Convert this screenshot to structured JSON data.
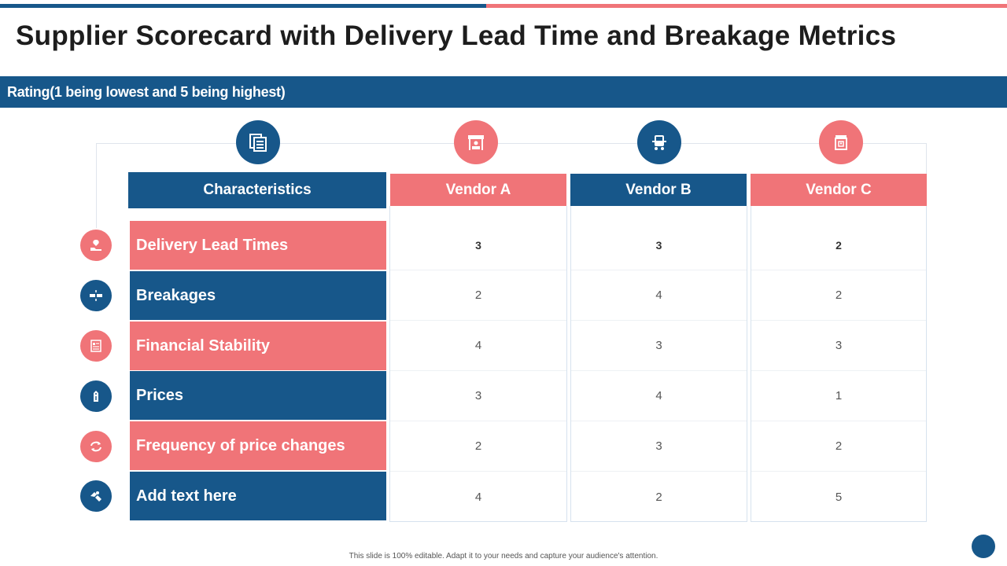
{
  "title": "Supplier Scorecard with Delivery Lead Time and Breakage Metrics",
  "rating_banner": "Rating(1 being lowest and 5 being highest)",
  "table": {
    "headers": {
      "characteristics": "Characteristics",
      "vendor_a": "Vendor A",
      "vendor_b": "Vendor B",
      "vendor_c": "Vendor C"
    },
    "rows": [
      {
        "label": "Delivery Lead Times",
        "a": "3",
        "b": "3",
        "c": "2"
      },
      {
        "label": "Breakages",
        "a": "2",
        "b": "4",
        "c": "2"
      },
      {
        "label": "Financial Stability",
        "a": "4",
        "b": "3",
        "c": "3"
      },
      {
        "label": "Prices",
        "a": "3",
        "b": "4",
        "c": "1"
      },
      {
        "label": "Frequency of price changes",
        "a": "2",
        "b": "3",
        "c": "2"
      },
      {
        "label": "Add text here",
        "a": "4",
        "b": "2",
        "c": "5"
      }
    ]
  },
  "icons": {
    "characteristics": "documents-icon",
    "vendor_a": "storefront-icon",
    "vendor_b": "delivery-truck-icon",
    "vendor_c": "shop-icon",
    "rows": [
      "plant-hand-icon",
      "broken-link-icon",
      "report-icon",
      "price-tag-icon",
      "refresh-icon",
      "handshake-icon"
    ]
  },
  "colors": {
    "blue": "#17578a",
    "pink": "#f07478"
  },
  "footer": "This slide is 100% editable. Adapt it to your needs and capture your audience's attention."
}
